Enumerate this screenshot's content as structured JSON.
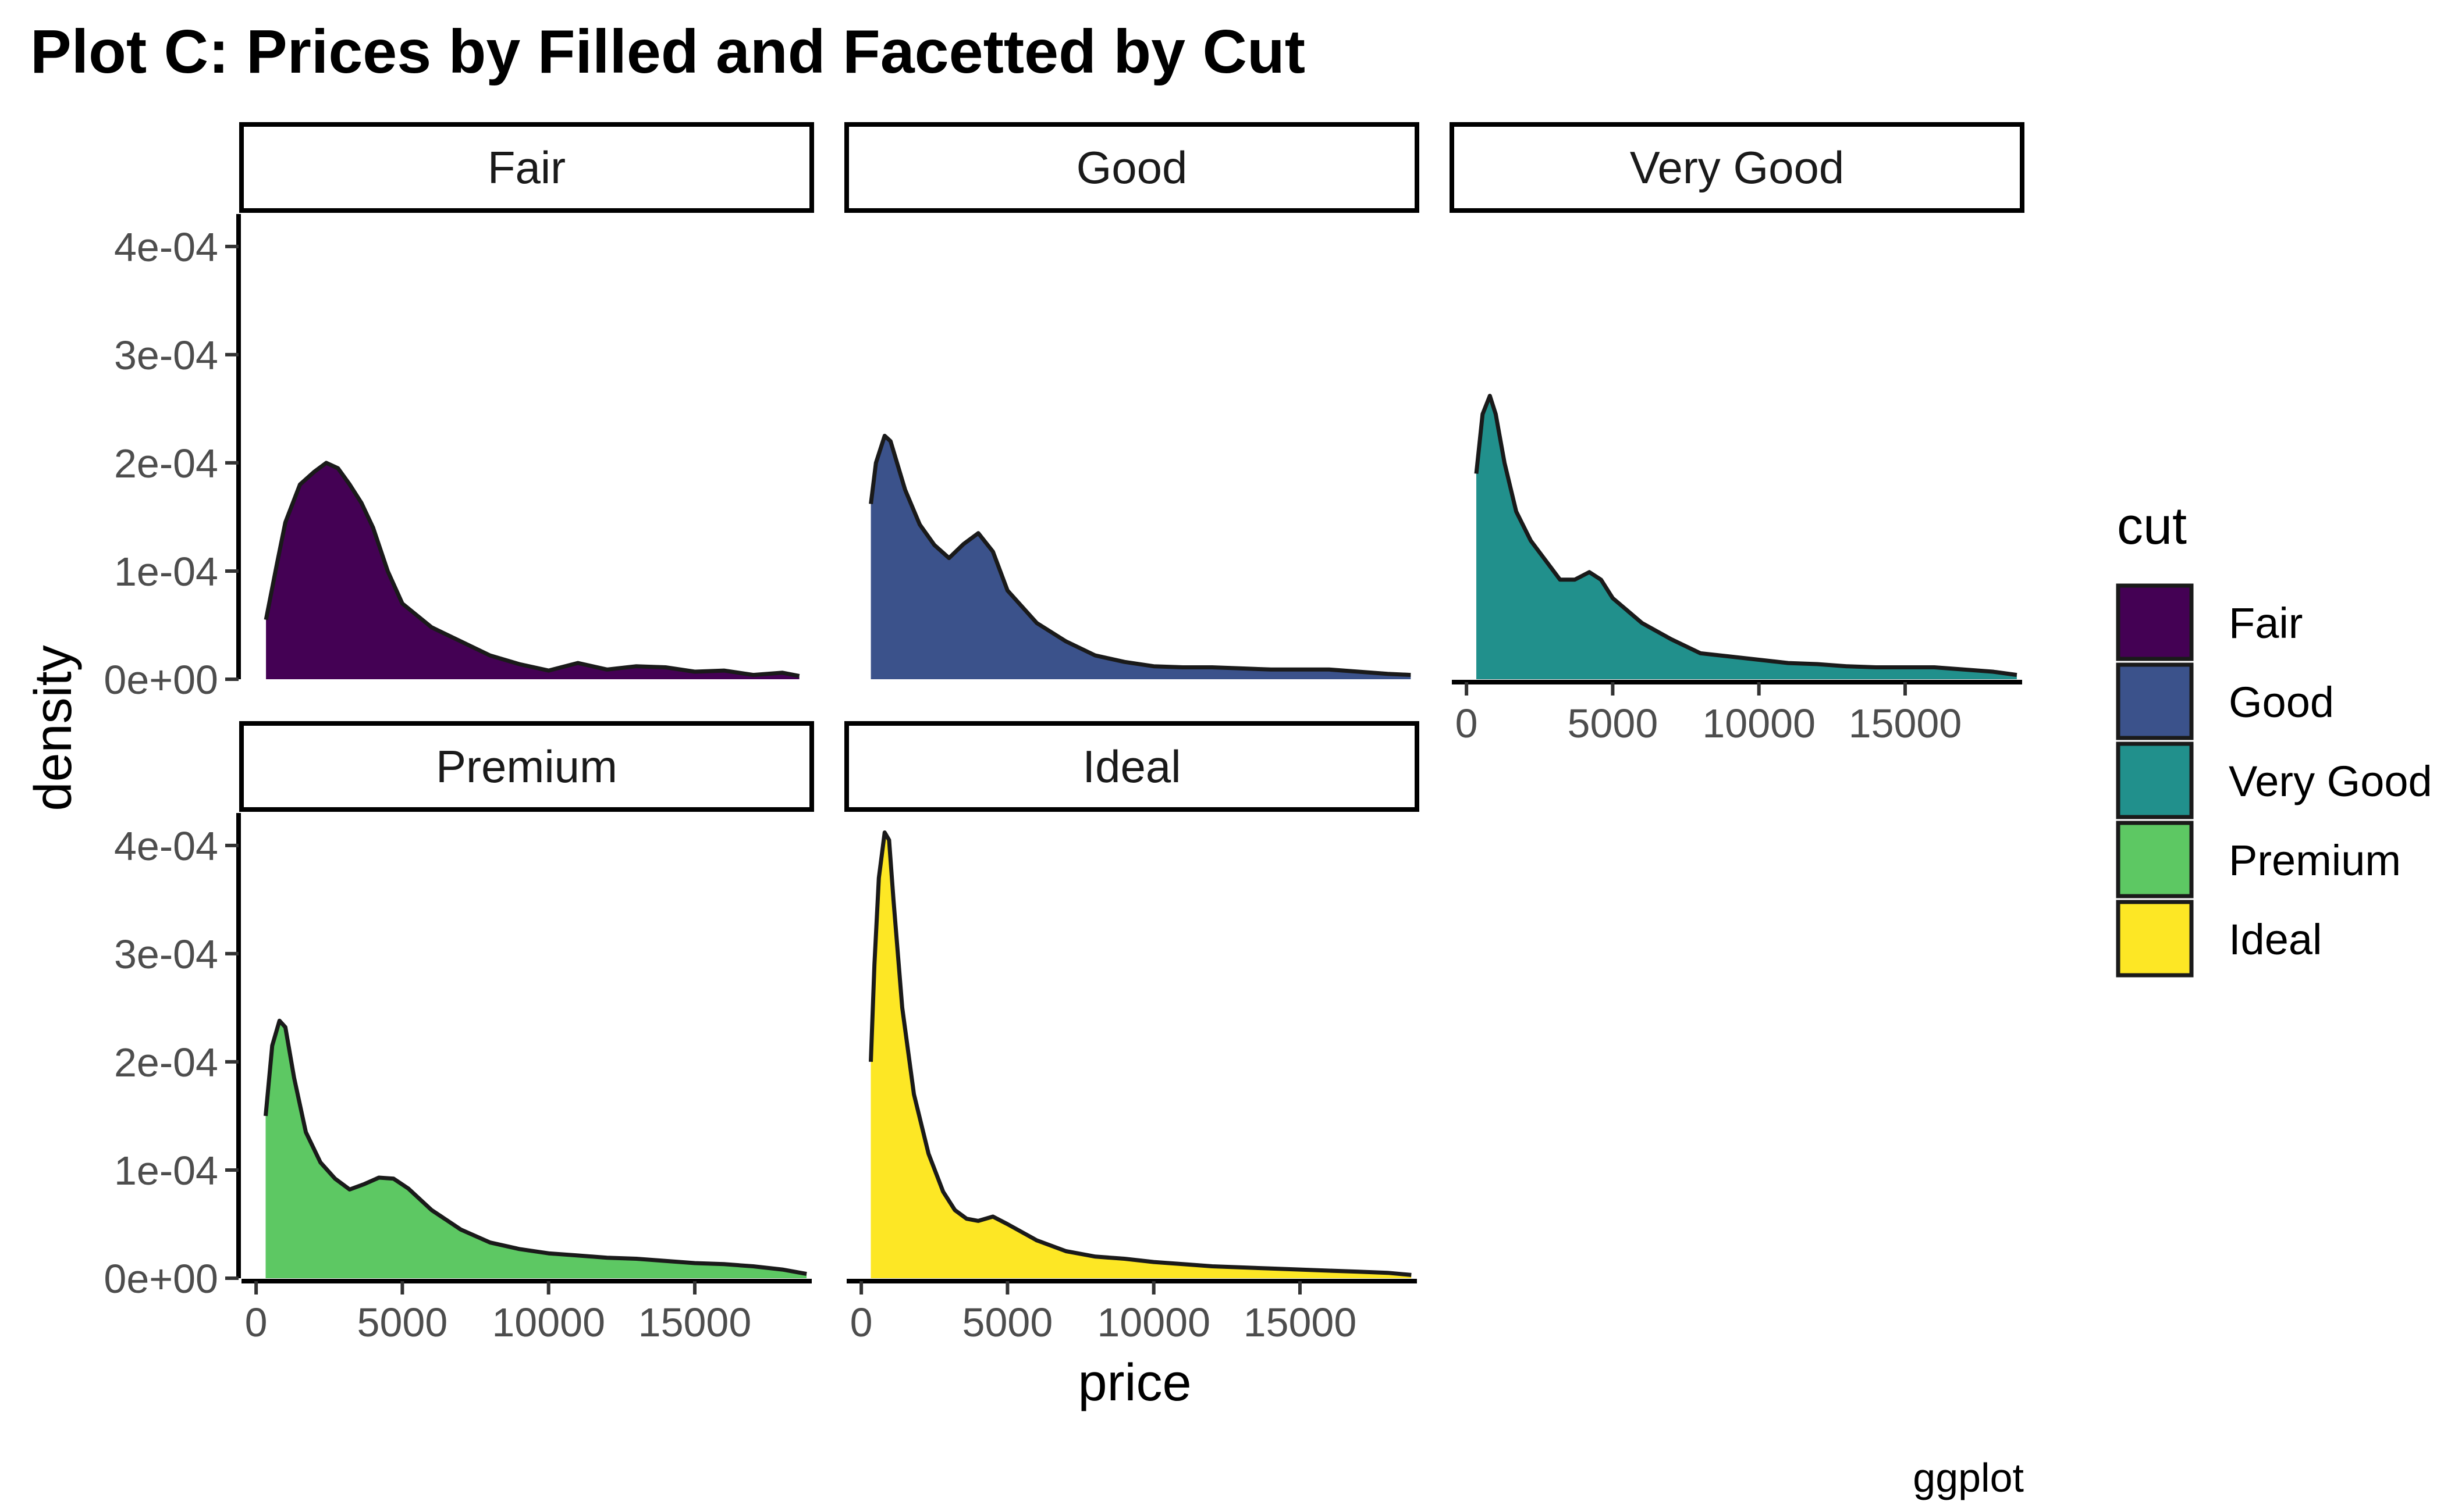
{
  "chart_data": {
    "type": "area",
    "title": "Plot C: Prices by Filled and Facetted by Cut",
    "xlabel": "price",
    "ylabel": "density",
    "caption": "ggplot",
    "xlim": [
      -500,
      19000
    ],
    "ylim": [
      0,
      0.00043
    ],
    "x_ticks": [
      0,
      5000,
      10000,
      15000
    ],
    "x_tick_labels": [
      "0",
      "5000",
      "10000",
      "15000"
    ],
    "y_ticks": [
      0,
      0.0001,
      0.0002,
      0.0003,
      0.0004
    ],
    "y_tick_labels": [
      "0e+00",
      "1e-04",
      "2e-04",
      "3e-04",
      "4e-04"
    ],
    "legend": {
      "title": "cut",
      "position": "right",
      "entries": [
        "Fair",
        "Good",
        "Very Good",
        "Premium",
        "Ideal"
      ]
    },
    "series": [
      {
        "name": "Fair",
        "color": "#440154",
        "points": [
          [
            337,
            5.5e-05
          ],
          [
            700,
            0.000105
          ],
          [
            1000,
            0.000145
          ],
          [
            1500,
            0.00018
          ],
          [
            2000,
            0.000192
          ],
          [
            2400,
            0.0002
          ],
          [
            2800,
            0.000195
          ],
          [
            3200,
            0.00018
          ],
          [
            3600,
            0.000163
          ],
          [
            4000,
            0.00014
          ],
          [
            4500,
            0.0001
          ],
          [
            5000,
            7e-05
          ],
          [
            6000,
            4.8e-05
          ],
          [
            7000,
            3.5e-05
          ],
          [
            8000,
            2.2e-05
          ],
          [
            9000,
            1.4e-05
          ],
          [
            10000,
            8e-06
          ],
          [
            11000,
            1.5e-05
          ],
          [
            12000,
            9e-06
          ],
          [
            13000,
            1.2e-05
          ],
          [
            14000,
            1.1e-05
          ],
          [
            15000,
            7e-06
          ],
          [
            16000,
            8e-06
          ],
          [
            17000,
            4e-06
          ],
          [
            18000,
            6e-06
          ],
          [
            18574,
            3e-06
          ]
        ]
      },
      {
        "name": "Good",
        "color": "#3B528B",
        "points": [
          [
            327,
            0.000162
          ],
          [
            500,
            0.0002
          ],
          [
            800,
            0.000225
          ],
          [
            1000,
            0.00022
          ],
          [
            1500,
            0.000175
          ],
          [
            2000,
            0.000143
          ],
          [
            2500,
            0.000124
          ],
          [
            3000,
            0.000112
          ],
          [
            3500,
            0.000125
          ],
          [
            4000,
            0.000135
          ],
          [
            4500,
            0.000118
          ],
          [
            5000,
            8.2e-05
          ],
          [
            6000,
            5.2e-05
          ],
          [
            7000,
            3.5e-05
          ],
          [
            8000,
            2.2e-05
          ],
          [
            9000,
            1.6e-05
          ],
          [
            10000,
            1.2e-05
          ],
          [
            11000,
            1.1e-05
          ],
          [
            12000,
            1.1e-05
          ],
          [
            13000,
            1e-05
          ],
          [
            14000,
            9e-06
          ],
          [
            15000,
            9e-06
          ],
          [
            16000,
            9e-06
          ],
          [
            17000,
            7e-06
          ],
          [
            18000,
            5e-06
          ],
          [
            18788,
            4e-06
          ]
        ]
      },
      {
        "name": "Very Good",
        "color": "#21908C",
        "points": [
          [
            336,
            0.00019
          ],
          [
            550,
            0.000245
          ],
          [
            800,
            0.000262
          ],
          [
            1000,
            0.000245
          ],
          [
            1300,
            0.0002
          ],
          [
            1700,
            0.000155
          ],
          [
            2200,
            0.000128
          ],
          [
            2700,
            0.00011
          ],
          [
            3200,
            9.2e-05
          ],
          [
            3700,
            9.2e-05
          ],
          [
            4200,
            9.9e-05
          ],
          [
            4600,
            9.2e-05
          ],
          [
            5000,
            7.5e-05
          ],
          [
            6000,
            5.2e-05
          ],
          [
            7000,
            3.7e-05
          ],
          [
            8000,
            2.4e-05
          ],
          [
            9000,
            2.1e-05
          ],
          [
            10000,
            1.8e-05
          ],
          [
            11000,
            1.5e-05
          ],
          [
            12000,
            1.4e-05
          ],
          [
            13000,
            1.2e-05
          ],
          [
            14000,
            1.1e-05
          ],
          [
            15000,
            1.1e-05
          ],
          [
            16000,
            1.1e-05
          ],
          [
            17000,
            9e-06
          ],
          [
            18000,
            7e-06
          ],
          [
            18818,
            4e-06
          ]
        ]
      },
      {
        "name": "Premium",
        "color": "#5DC863",
        "points": [
          [
            326,
            0.00015
          ],
          [
            550,
            0.000215
          ],
          [
            800,
            0.000238
          ],
          [
            1000,
            0.000232
          ],
          [
            1300,
            0.000185
          ],
          [
            1700,
            0.000135
          ],
          [
            2200,
            0.000107
          ],
          [
            2700,
            9.2e-05
          ],
          [
            3200,
            8.2e-05
          ],
          [
            3700,
            8.7e-05
          ],
          [
            4200,
            9.3e-05
          ],
          [
            4700,
            9.2e-05
          ],
          [
            5200,
            8.3e-05
          ],
          [
            6000,
            6.3e-05
          ],
          [
            7000,
            4.5e-05
          ],
          [
            8000,
            3.3e-05
          ],
          [
            9000,
            2.7e-05
          ],
          [
            10000,
            2.3e-05
          ],
          [
            11000,
            2.1e-05
          ],
          [
            12000,
            1.9e-05
          ],
          [
            13000,
            1.8e-05
          ],
          [
            14000,
            1.6e-05
          ],
          [
            15000,
            1.4e-05
          ],
          [
            16000,
            1.3e-05
          ],
          [
            17000,
            1.1e-05
          ],
          [
            18000,
            8e-06
          ],
          [
            18823,
            4e-06
          ]
        ]
      },
      {
        "name": "Ideal",
        "color": "#FDE725",
        "points": [
          [
            326,
            0.0002
          ],
          [
            450,
            0.00029
          ],
          [
            600,
            0.00037
          ],
          [
            800,
            0.000412
          ],
          [
            950,
            0.000405
          ],
          [
            1100,
            0.00035
          ],
          [
            1400,
            0.00025
          ],
          [
            1800,
            0.00017
          ],
          [
            2300,
            0.000115
          ],
          [
            2800,
            8e-05
          ],
          [
            3200,
            6.3e-05
          ],
          [
            3600,
            5.5e-05
          ],
          [
            4000,
            5.3e-05
          ],
          [
            4500,
            5.7e-05
          ],
          [
            5000,
            5e-05
          ],
          [
            6000,
            3.5e-05
          ],
          [
            7000,
            2.5e-05
          ],
          [
            8000,
            2e-05
          ],
          [
            9000,
            1.8e-05
          ],
          [
            10000,
            1.5e-05
          ],
          [
            11000,
            1.3e-05
          ],
          [
            12000,
            1.1e-05
          ],
          [
            13000,
            1e-05
          ],
          [
            14000,
            9e-06
          ],
          [
            15000,
            8e-06
          ],
          [
            16000,
            7e-06
          ],
          [
            17000,
            6e-06
          ],
          [
            18000,
            5e-06
          ],
          [
            18806,
            3e-06
          ]
        ]
      }
    ]
  }
}
